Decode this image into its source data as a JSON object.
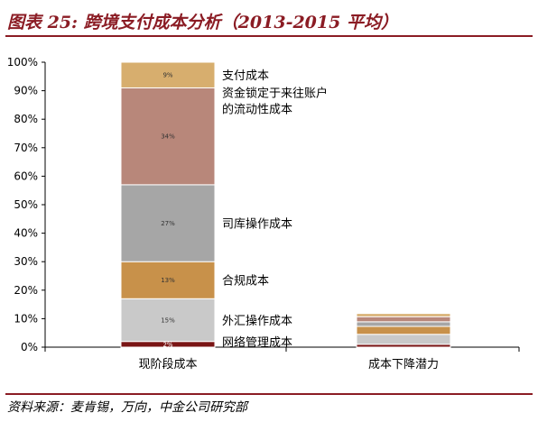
{
  "header": {
    "title": "图表 25: 跨境支付成本分析（2013-2015 平均）"
  },
  "footer": {
    "source": "资料来源：麦肯锡，万向，中金公司研究部"
  },
  "chart_data": {
    "type": "bar",
    "stacked": true,
    "categories": [
      "现阶段成本",
      "成本下降潜力"
    ],
    "ylim": [
      0,
      100
    ],
    "yticks": [
      "0%",
      "10%",
      "20%",
      "30%",
      "40%",
      "50%",
      "60%",
      "70%",
      "80%",
      "90%",
      "100%"
    ],
    "grid": false,
    "series": [
      {
        "name": "网络管理成本",
        "color": "#7A1515",
        "values": [
          2,
          1
        ],
        "label": "2%"
      },
      {
        "name": "外汇操作成本",
        "color": "#C9C9C9",
        "values": [
          15,
          3.5
        ],
        "label": "15%"
      },
      {
        "name": "合规成本",
        "color": "#C8914A",
        "values": [
          13,
          2.8
        ],
        "label": "13%"
      },
      {
        "name": "司库操作成本",
        "color": "#A6A6A6",
        "values": [
          27,
          1.6
        ],
        "label": "27%"
      },
      {
        "name": "资金锁定于来往账户的流动性成本",
        "color": "#B8877A",
        "values": [
          34,
          1.8
        ],
        "label": "34%"
      },
      {
        "name": "支付成本",
        "color": "#D7AE6E",
        "values": [
          9,
          1.1
        ],
        "label": "9%"
      }
    ],
    "legend_labels": [
      [
        "支付成本"
      ],
      [
        "资金锁定于来往账户",
        "的流动性成本"
      ],
      [
        "司库操作成本"
      ],
      [
        "合规成本"
      ],
      [
        "外汇操作成本"
      ],
      [
        "网络管理成本"
      ]
    ]
  }
}
